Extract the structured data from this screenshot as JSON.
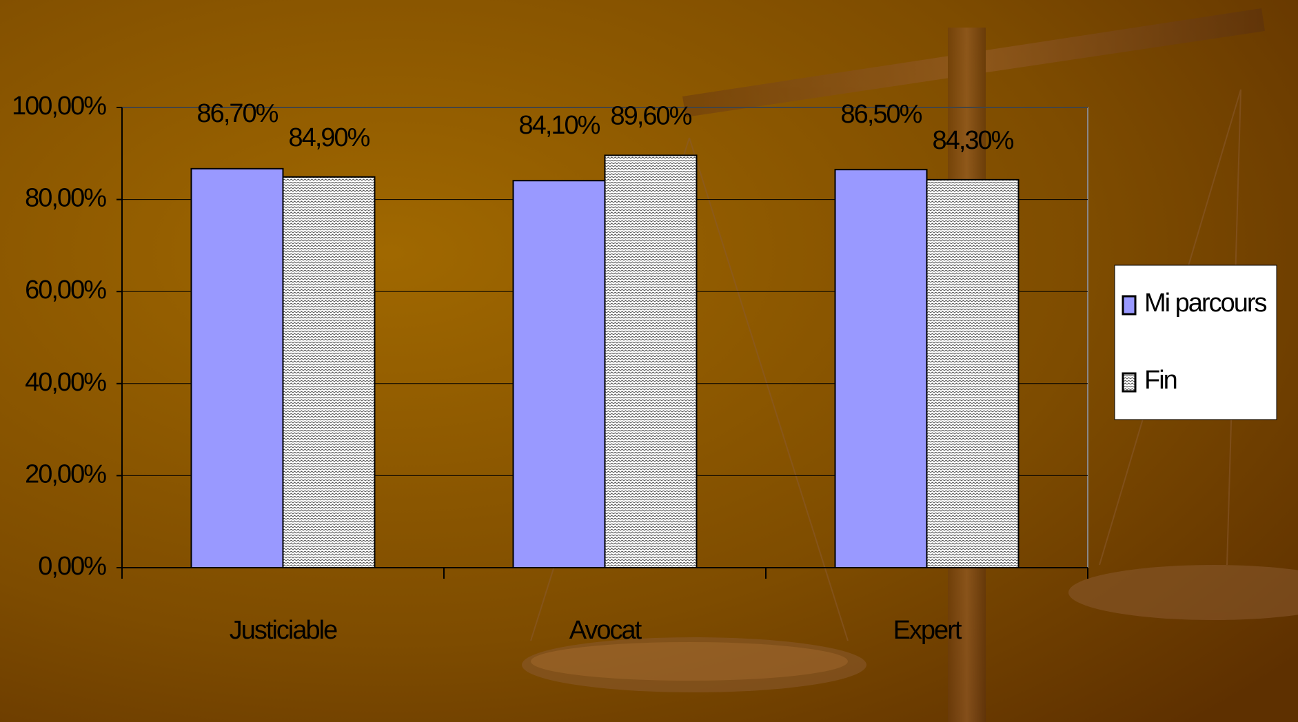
{
  "chart_data": {
    "type": "bar",
    "categories": [
      "Justiciable",
      "Avocat",
      "Expert"
    ],
    "series": [
      {
        "name": "Mi parcours",
        "color": "#9999ff",
        "values": [
          86.7,
          84.1,
          86.5
        ],
        "value_labels": [
          "86,70%",
          "84,10%",
          "86,50%"
        ]
      },
      {
        "name": "Fin",
        "color": "#ffffff",
        "hatch": true,
        "values": [
          84.9,
          89.6,
          84.3
        ],
        "value_labels": [
          "84,90%",
          "89,60%",
          "84,30%"
        ]
      }
    ],
    "ylim": [
      0,
      100
    ],
    "yticks": [
      {
        "value": 0,
        "label": "0,00%"
      },
      {
        "value": 20,
        "label": "20,00%"
      },
      {
        "value": 40,
        "label": "40,00%"
      },
      {
        "value": 60,
        "label": "60,00%"
      },
      {
        "value": 80,
        "label": "80,00%"
      },
      {
        "value": 100,
        "label": "100,00%"
      }
    ],
    "grid": true,
    "legend": "right"
  }
}
